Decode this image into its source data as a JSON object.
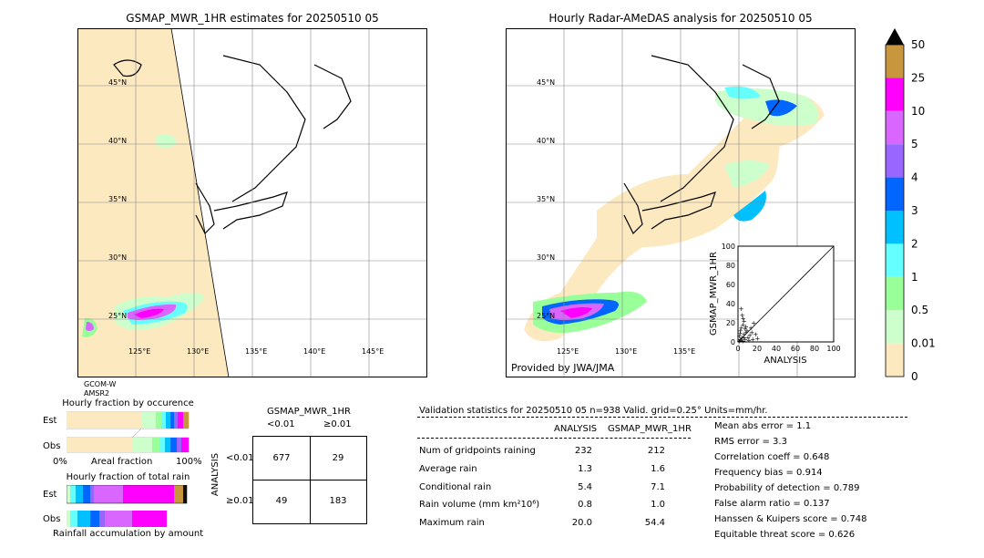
{
  "left_map": {
    "title": "GSMAP_MWR_1HR estimates for 20250510 05",
    "lat_labels": [
      "45°N",
      "40°N",
      "35°N",
      "30°N",
      "25°N"
    ],
    "lon_labels": [
      "125°E",
      "130°E",
      "135°E",
      "140°E",
      "145°E"
    ],
    "satellite_label_1": "GCOM-W",
    "satellite_label_2": "AMSR2"
  },
  "right_map": {
    "title": "Hourly Radar-AMeDAS analysis for 20250510 05",
    "lat_labels": [
      "45°N",
      "40°N",
      "35°N",
      "30°N",
      "25°N"
    ],
    "lon_labels": [
      "125°E",
      "130°E",
      "135°E"
    ],
    "provider": "Provided by JWA/JMA"
  },
  "colorbar": {
    "labels": [
      "50",
      "25",
      "10",
      "5",
      "4",
      "3",
      "2",
      "1",
      "0.5",
      "0.01",
      "0"
    ],
    "colors": [
      "#c8963c",
      "#ff00ff",
      "#d966ff",
      "#9966ff",
      "#0066ff",
      "#00c0ff",
      "#66ffff",
      "#99ff99",
      "#ccffcc",
      "#fde9c0"
    ]
  },
  "chart_data": {
    "type": "scatter",
    "xlabel": "ANALYSIS",
    "ylabel": "GSMAP_MWR_1HR",
    "xlim": [
      0,
      100
    ],
    "ylim": [
      0,
      100
    ],
    "ticks": [
      "0",
      "20",
      "40",
      "60",
      "80",
      "100"
    ],
    "points": [
      [
        1,
        1
      ],
      [
        2,
        3
      ],
      [
        3,
        2
      ],
      [
        4,
        5
      ],
      [
        5,
        1
      ],
      [
        6,
        8
      ],
      [
        7,
        3
      ],
      [
        8,
        10
      ],
      [
        2,
        12
      ],
      [
        3,
        15
      ],
      [
        5,
        18
      ],
      [
        6,
        22
      ],
      [
        4,
        28
      ],
      [
        8,
        16
      ],
      [
        10,
        5
      ],
      [
        12,
        7
      ],
      [
        15,
        3
      ],
      [
        18,
        8
      ],
      [
        20,
        4
      ],
      [
        9,
        12
      ],
      [
        11,
        2
      ],
      [
        14,
        10
      ],
      [
        16,
        20
      ],
      [
        3,
        35
      ],
      [
        5,
        25
      ],
      [
        1,
        6
      ],
      [
        7,
        14
      ],
      [
        2,
        9
      ],
      [
        13,
        15
      ],
      [
        6,
        5
      ]
    ]
  },
  "fraction_occurrence": {
    "title": "Hourly fraction by occurence",
    "row_est": "Est",
    "row_obs": "Obs",
    "axis_left": "0%",
    "axis_mid": "Areal fraction",
    "axis_right": "100%"
  },
  "fraction_total": {
    "title": "Hourly fraction of total rain",
    "row_est": "Est",
    "row_obs": "Obs",
    "caption": "Rainfall accumulation by amount"
  },
  "contingency": {
    "title": "GSMAP_MWR_1HR",
    "col_lt": "<0.01",
    "col_ge": "≥0.01",
    "row_axis": "ANALYSIS",
    "row_lt": "<0.01",
    "row_ge": "≥0.01",
    "a": "677",
    "b": "29",
    "c": "49",
    "d": "183"
  },
  "validation": {
    "header": "Validation statistics for 20250510 05  n=938 Valid. grid=0.25° Units=mm/hr.",
    "col_analysis": "ANALYSIS",
    "col_gsmap": "GSMAP_MWR_1HR",
    "rows": [
      {
        "label": "Num of gridpoints raining",
        "analysis": "232",
        "gsmap": "212"
      },
      {
        "label": "Average rain",
        "analysis": "1.3",
        "gsmap": "1.6"
      },
      {
        "label": "Conditional rain",
        "analysis": "5.4",
        "gsmap": "7.1"
      },
      {
        "label": "Rain volume (mm km²10⁶)",
        "analysis": "0.8",
        "gsmap": "1.0"
      },
      {
        "label": "Maximum rain",
        "analysis": "20.0",
        "gsmap": "54.4"
      }
    ],
    "scores": [
      "Mean abs error =    1.1",
      "RMS error =    3.3",
      "Correlation coeff =  0.648",
      "Frequency bias =  0.914",
      "Probability of detection =  0.789",
      "False alarm ratio =  0.137",
      "Hanssen & Kuipers score =  0.748",
      "Equitable threat score =  0.626"
    ]
  }
}
